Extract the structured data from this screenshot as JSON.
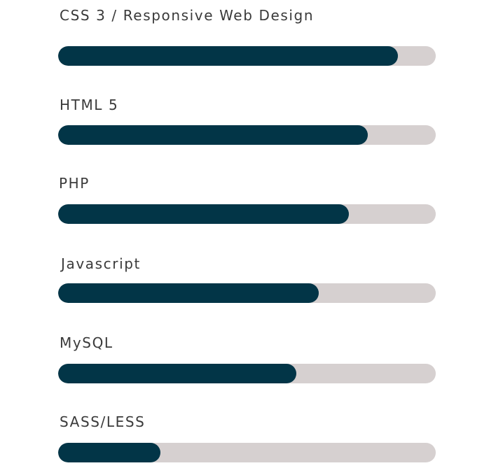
{
  "colors": {
    "fill": "#023547",
    "track": "#d6d0d0",
    "label": "#3a3a3a",
    "background": "#ffffff"
  },
  "skills": [
    {
      "label": "CSS 3 / Responsive Web Design",
      "percent": 90
    },
    {
      "label": "HTML 5",
      "percent": 82
    },
    {
      "label": "PHP",
      "percent": 77
    },
    {
      "label": "Javascript",
      "percent": 69
    },
    {
      "label": "MySQL",
      "percent": 63
    },
    {
      "label": "SASS/LESS",
      "percent": 27
    }
  ]
}
